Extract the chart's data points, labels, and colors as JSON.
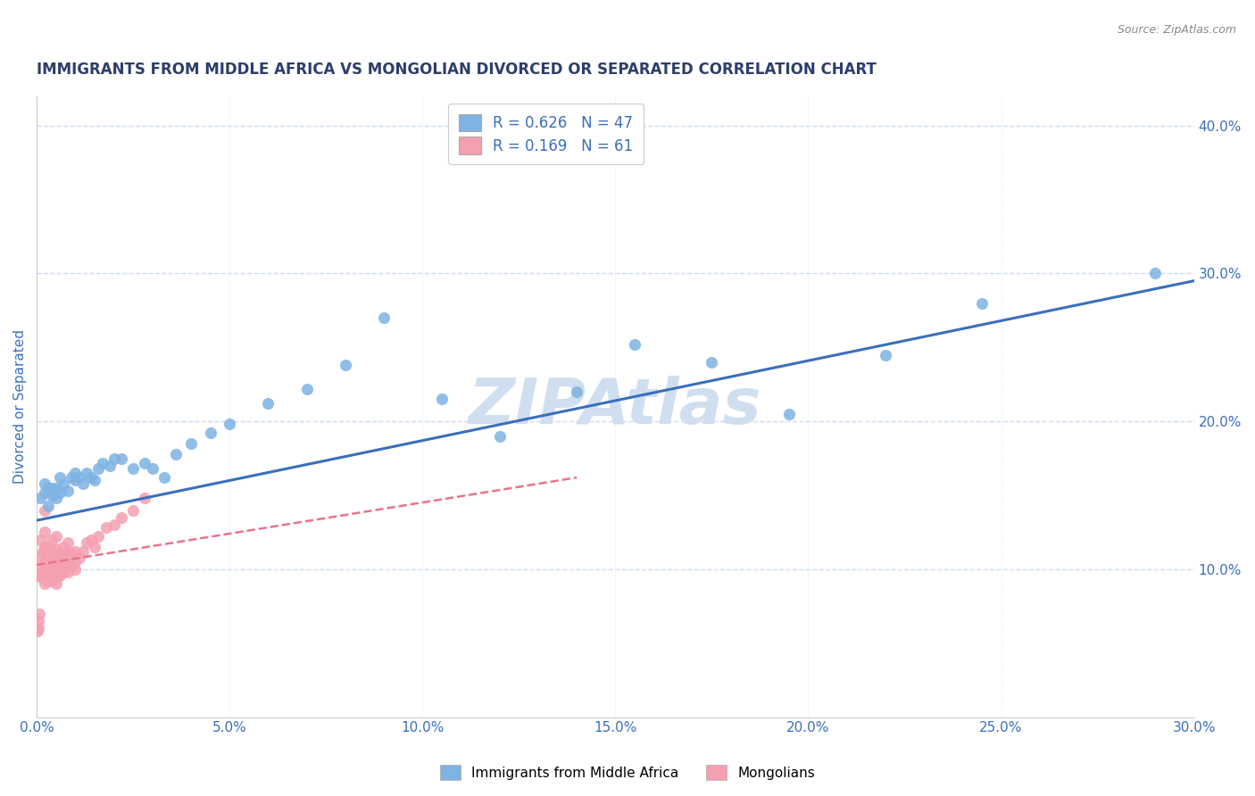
{
  "title": "IMMIGRANTS FROM MIDDLE AFRICA VS MONGOLIAN DIVORCED OR SEPARATED CORRELATION CHART",
  "source_text": "Source: ZipAtlas.com",
  "ylabel": "Divorced or Separated",
  "watermark": "ZIPAtlas",
  "xlim": [
    0.0,
    0.3
  ],
  "ylim": [
    0.0,
    0.42
  ],
  "xticks": [
    0.0,
    0.05,
    0.1,
    0.15,
    0.2,
    0.25,
    0.3
  ],
  "yticks_right": [
    0.1,
    0.2,
    0.3,
    0.4
  ],
  "ytick_labels_right": [
    "10.0%",
    "20.0%",
    "30.0%",
    "40.0%"
  ],
  "xtick_labels": [
    "0.0%",
    "5.0%",
    "10.0%",
    "15.0%",
    "20.0%",
    "25.0%",
    "30.0%"
  ],
  "blue_R": 0.626,
  "blue_N": 47,
  "pink_R": 0.169,
  "pink_N": 61,
  "blue_color": "#7eb3e3",
  "pink_color": "#f4a0b0",
  "blue_line_color": "#3a6fbc",
  "pink_line_color": "#e8748a",
  "title_color": "#2c3e6b",
  "axis_label_color": "#3a6fbc",
  "tick_color": "#3a6fbc",
  "grid_color": "#c8d8f0",
  "background_color": "#ffffff",
  "watermark_color": "#d0dff0",
  "blue_line_x": [
    0.0,
    0.3
  ],
  "blue_line_y": [
    0.133,
    0.295
  ],
  "pink_line_x": [
    0.0,
    0.14
  ],
  "pink_line_y": [
    0.103,
    0.162
  ],
  "blue_scatter_x": [
    0.001,
    0.002,
    0.002,
    0.003,
    0.003,
    0.004,
    0.004,
    0.005,
    0.005,
    0.006,
    0.006,
    0.007,
    0.008,
    0.009,
    0.01,
    0.01,
    0.011,
    0.012,
    0.013,
    0.014,
    0.015,
    0.016,
    0.017,
    0.019,
    0.02,
    0.022,
    0.025,
    0.028,
    0.03,
    0.033,
    0.036,
    0.04,
    0.045,
    0.05,
    0.06,
    0.07,
    0.08,
    0.09,
    0.105,
    0.12,
    0.14,
    0.155,
    0.175,
    0.195,
    0.22,
    0.245,
    0.29
  ],
  "blue_scatter_y": [
    0.148,
    0.152,
    0.158,
    0.143,
    0.155,
    0.15,
    0.155,
    0.148,
    0.155,
    0.152,
    0.162,
    0.157,
    0.153,
    0.162,
    0.16,
    0.165,
    0.162,
    0.158,
    0.165,
    0.162,
    0.16,
    0.168,
    0.172,
    0.17,
    0.175,
    0.175,
    0.168,
    0.172,
    0.168,
    0.162,
    0.178,
    0.185,
    0.192,
    0.198,
    0.212,
    0.222,
    0.238,
    0.27,
    0.215,
    0.19,
    0.22,
    0.252,
    0.24,
    0.205,
    0.245,
    0.28,
    0.3
  ],
  "pink_scatter_x": [
    0.0003,
    0.0004,
    0.0005,
    0.0006,
    0.0008,
    0.001,
    0.001,
    0.001,
    0.001,
    0.0015,
    0.0015,
    0.002,
    0.002,
    0.002,
    0.002,
    0.002,
    0.002,
    0.003,
    0.003,
    0.003,
    0.003,
    0.003,
    0.004,
    0.004,
    0.004,
    0.004,
    0.004,
    0.005,
    0.005,
    0.005,
    0.005,
    0.005,
    0.005,
    0.006,
    0.006,
    0.006,
    0.006,
    0.007,
    0.007,
    0.007,
    0.007,
    0.008,
    0.008,
    0.008,
    0.008,
    0.009,
    0.009,
    0.01,
    0.01,
    0.01,
    0.011,
    0.012,
    0.013,
    0.014,
    0.015,
    0.016,
    0.018,
    0.02,
    0.022,
    0.025,
    0.028
  ],
  "pink_scatter_y": [
    0.058,
    0.065,
    0.06,
    0.07,
    0.095,
    0.095,
    0.1,
    0.108,
    0.12,
    0.1,
    0.112,
    0.09,
    0.098,
    0.105,
    0.115,
    0.125,
    0.14,
    0.092,
    0.098,
    0.102,
    0.108,
    0.115,
    0.092,
    0.096,
    0.104,
    0.112,
    0.12,
    0.09,
    0.095,
    0.102,
    0.108,
    0.114,
    0.122,
    0.096,
    0.1,
    0.105,
    0.11,
    0.098,
    0.102,
    0.108,
    0.115,
    0.098,
    0.105,
    0.112,
    0.118,
    0.102,
    0.11,
    0.1,
    0.105,
    0.112,
    0.108,
    0.112,
    0.118,
    0.12,
    0.115,
    0.122,
    0.128,
    0.13,
    0.135,
    0.14,
    0.148
  ]
}
